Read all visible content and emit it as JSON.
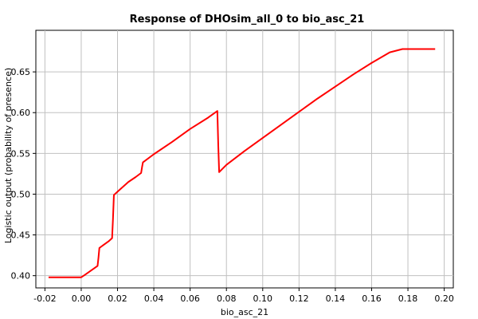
{
  "chart_data": {
    "type": "line",
    "title": "Response of DHOsim_all_0 to bio_asc_21",
    "xlabel": "bio_asc_21",
    "ylabel": "Logistic output (probability of presence)",
    "xlim": [
      -0.025,
      0.205
    ],
    "ylim": [
      0.385,
      0.701
    ],
    "x_ticks": [
      -0.02,
      0.0,
      0.02,
      0.04,
      0.06,
      0.08,
      0.1,
      0.12,
      0.14,
      0.16,
      0.18,
      0.2
    ],
    "x_tick_labels": [
      "-0.02",
      "0.00",
      "0.02",
      "0.04",
      "0.06",
      "0.08",
      "0.10",
      "0.12",
      "0.14",
      "0.16",
      "0.18",
      "0.20"
    ],
    "y_ticks": [
      0.4,
      0.45,
      0.5,
      0.55,
      0.6,
      0.65
    ],
    "y_tick_labels": [
      "0.40",
      "0.45",
      "0.50",
      "0.55",
      "0.60",
      "0.65"
    ],
    "grid": true,
    "series": [
      {
        "color": "#ff0000",
        "x": [
          -0.018,
          0.0,
          0.002,
          0.009,
          0.0095,
          0.01,
          0.015,
          0.017,
          0.0175,
          0.018,
          0.022,
          0.026,
          0.03,
          0.033,
          0.0335,
          0.034,
          0.04,
          0.05,
          0.06,
          0.07,
          0.075,
          0.0755,
          0.076,
          0.08,
          0.09,
          0.1,
          0.11,
          0.12,
          0.13,
          0.14,
          0.15,
          0.16,
          0.17,
          0.177,
          0.178,
          0.195
        ],
        "y": [
          0.398,
          0.398,
          0.401,
          0.412,
          0.422,
          0.434,
          0.442,
          0.446,
          0.47,
          0.499,
          0.507,
          0.515,
          0.521,
          0.526,
          0.533,
          0.539,
          0.549,
          0.564,
          0.58,
          0.594,
          0.602,
          0.56,
          0.527,
          0.536,
          0.553,
          0.569,
          0.585,
          0.601,
          0.617,
          0.632,
          0.647,
          0.661,
          0.674,
          0.678,
          0.678,
          0.678
        ]
      }
    ]
  }
}
